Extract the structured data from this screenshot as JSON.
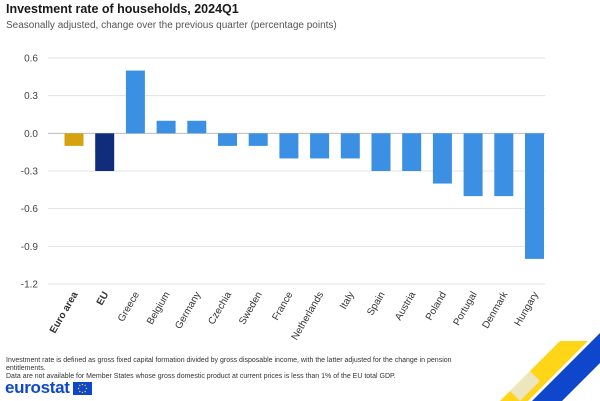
{
  "header": {
    "title": "Investment rate of households, 2024Q1",
    "subtitle": "Seasonally adjusted, change over the previous quarter (percentage points)"
  },
  "footnotes": [
    "Investment rate is defined as gross fixed capital formation divided by gross disposable income, with the latter adjusted for the change in pension entitlements.",
    "Data are not available for Member States whose gross domestic product at current prices is less than 1% of the EU total GDP."
  ],
  "logo": {
    "text": "eurostat"
  },
  "colors": {
    "euro_area": "#d4a30f",
    "eu": "#0f2d7a",
    "country": "#3c90e4",
    "grid": "#e3e3e3",
    "zero_line": "#bdbdbd"
  },
  "chart_data": {
    "type": "bar",
    "title": "Investment rate of households, 2024Q1",
    "subtitle": "Seasonally adjusted, change over the previous quarter (percentage points)",
    "xlabel": "",
    "ylabel": "",
    "ylim": [
      -1.2,
      0.6
    ],
    "yticks": [
      0.6,
      0.3,
      0.0,
      -0.3,
      -0.6,
      -0.9,
      -1.2
    ],
    "ytick_labels": [
      "0.6",
      "0.3",
      "0.0",
      "-0.3",
      "-0.6",
      "-0.9",
      "-1.2"
    ],
    "grid": true,
    "legend": "none",
    "categories": [
      "Euro area",
      "EU",
      "Greece",
      "Belgium",
      "Germany",
      "Czechia",
      "Sweden",
      "France",
      "Netherlands",
      "Italy",
      "Spain",
      "Austria",
      "Poland",
      "Portugal",
      "Denmark",
      "Hungary"
    ],
    "values": [
      -0.1,
      -0.3,
      0.5,
      0.1,
      0.1,
      -0.1,
      -0.1,
      -0.2,
      -0.2,
      -0.2,
      -0.3,
      -0.3,
      -0.4,
      -0.5,
      -0.5,
      -1.0
    ],
    "bold_categories": [
      "Euro area",
      "EU"
    ],
    "bar_colors": [
      "euro_area",
      "eu",
      "country",
      "country",
      "country",
      "country",
      "country",
      "country",
      "country",
      "country",
      "country",
      "country",
      "country",
      "country",
      "country",
      "country"
    ]
  }
}
